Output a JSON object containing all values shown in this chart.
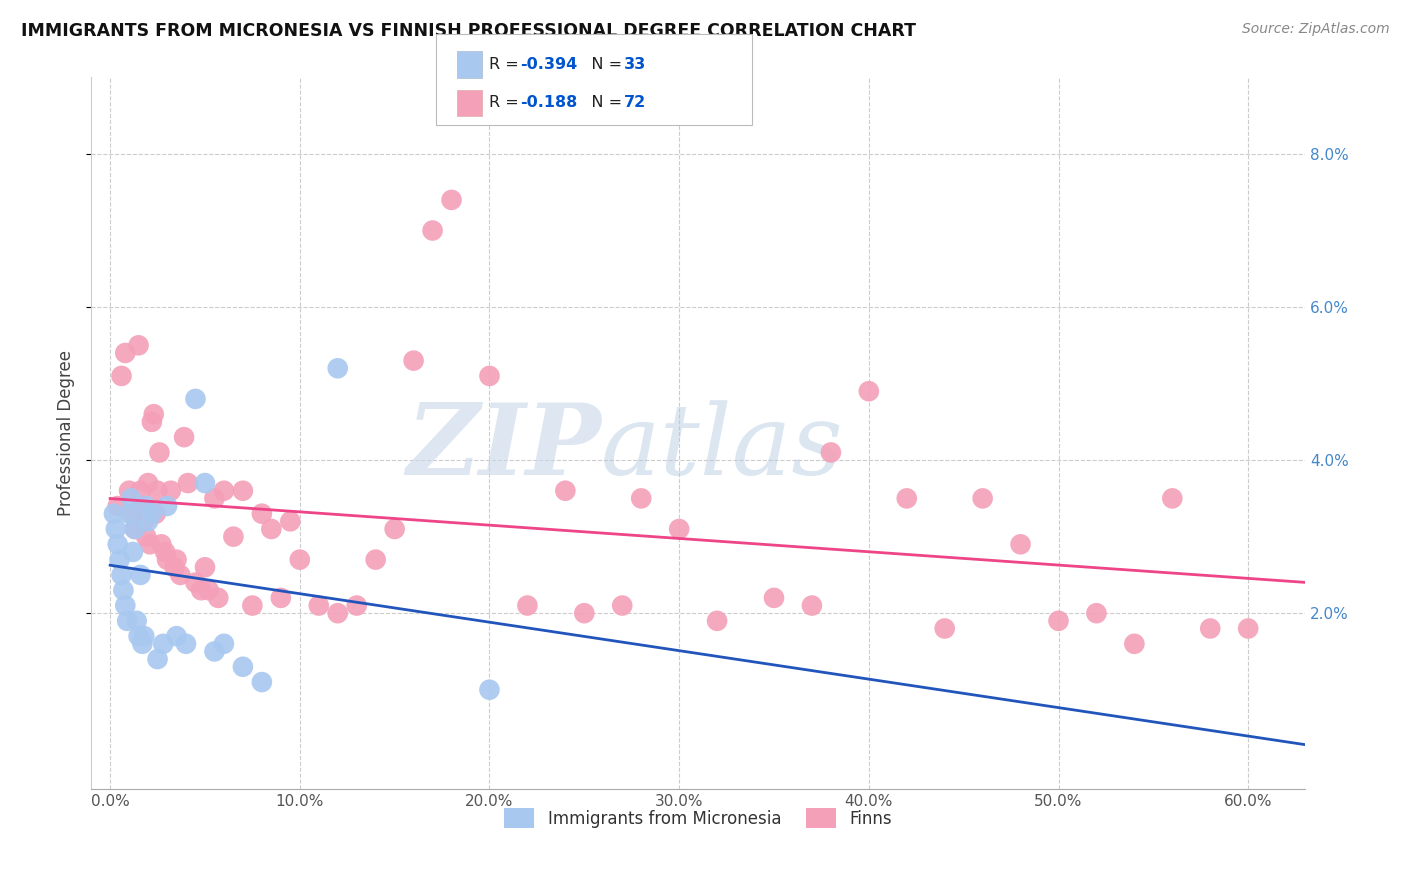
{
  "title": "IMMIGRANTS FROM MICRONESIA VS FINNISH PROFESSIONAL DEGREE CORRELATION CHART",
  "source": "Source: ZipAtlas.com",
  "ylabel": "Professional Degree",
  "x_tick_labels": [
    "0.0%",
    "10.0%",
    "20.0%",
    "30.0%",
    "40.0%",
    "50.0%",
    "60.0%"
  ],
  "x_tick_values": [
    0.0,
    10.0,
    20.0,
    30.0,
    40.0,
    50.0,
    60.0
  ],
  "y_tick_labels": [
    "2.0%",
    "4.0%",
    "6.0%",
    "8.0%"
  ],
  "y_tick_values": [
    2.0,
    4.0,
    6.0,
    8.0
  ],
  "xlim": [
    -1.0,
    63.0
  ],
  "ylim": [
    -0.3,
    9.0
  ],
  "legend_label1": "Immigrants from Micronesia",
  "legend_label2": "Finns",
  "R1": "-0.394",
  "N1": "33",
  "R2": "-0.188",
  "N2": "72",
  "color_blue": "#A8C8F0",
  "color_pink": "#F4A0B8",
  "color_blue_line": "#2255BB",
  "color_pink_line": "#EE4488",
  "watermark_zip": "ZIP",
  "watermark_atlas": "atlas",
  "background_color": "#FFFFFF",
  "grid_color": "#CCCCCC",
  "blue_dots_x": [
    0.2,
    0.3,
    0.4,
    0.5,
    0.6,
    0.7,
    0.8,
    0.9,
    1.0,
    1.1,
    1.2,
    1.3,
    1.4,
    1.5,
    1.6,
    1.7,
    1.8,
    1.9,
    2.0,
    2.2,
    2.5,
    2.8,
    3.0,
    3.5,
    4.0,
    4.5,
    5.0,
    5.5,
    6.0,
    7.0,
    8.0,
    12.0,
    20.0
  ],
  "blue_dots_y": [
    3.3,
    3.1,
    2.9,
    2.7,
    2.5,
    2.3,
    2.1,
    1.9,
    3.3,
    3.5,
    2.8,
    3.1,
    1.9,
    1.7,
    2.5,
    1.6,
    1.7,
    3.4,
    3.2,
    3.3,
    1.4,
    1.6,
    3.4,
    1.7,
    1.6,
    4.8,
    3.7,
    1.5,
    1.6,
    1.3,
    1.1,
    5.2,
    1.0
  ],
  "pink_dots_x": [
    0.4,
    0.6,
    0.8,
    1.0,
    1.2,
    1.3,
    1.5,
    1.6,
    1.7,
    1.8,
    1.9,
    2.0,
    2.1,
    2.2,
    2.3,
    2.4,
    2.5,
    2.6,
    2.7,
    2.9,
    3.0,
    3.2,
    3.4,
    3.5,
    3.7,
    3.9,
    4.1,
    4.5,
    4.8,
    5.0,
    5.2,
    5.5,
    5.7,
    6.0,
    6.5,
    7.0,
    7.5,
    8.0,
    8.5,
    9.0,
    9.5,
    10.0,
    11.0,
    12.0,
    13.0,
    14.0,
    15.0,
    16.0,
    17.0,
    18.0,
    20.0,
    22.0,
    24.0,
    25.0,
    27.0,
    28.0,
    30.0,
    32.0,
    35.0,
    37.0,
    38.0,
    40.0,
    42.0,
    44.0,
    46.0,
    48.0,
    50.0,
    52.0,
    54.0,
    56.0,
    58.0,
    60.0
  ],
  "pink_dots_y": [
    3.4,
    5.1,
    5.4,
    3.6,
    3.3,
    3.1,
    5.5,
    3.6,
    3.4,
    3.2,
    3.0,
    3.7,
    2.9,
    4.5,
    4.6,
    3.3,
    3.6,
    4.1,
    2.9,
    2.8,
    2.7,
    3.6,
    2.6,
    2.7,
    2.5,
    4.3,
    3.7,
    2.4,
    2.3,
    2.6,
    2.3,
    3.5,
    2.2,
    3.6,
    3.0,
    3.6,
    2.1,
    3.3,
    3.1,
    2.2,
    3.2,
    2.7,
    2.1,
    2.0,
    2.1,
    2.7,
    3.1,
    5.3,
    7.0,
    7.4,
    5.1,
    2.1,
    3.6,
    2.0,
    2.1,
    3.5,
    3.1,
    1.9,
    2.2,
    2.1,
    4.1,
    4.9,
    3.5,
    1.8,
    3.5,
    2.9,
    1.9,
    2.0,
    1.6,
    3.5,
    1.8,
    1.8
  ]
}
